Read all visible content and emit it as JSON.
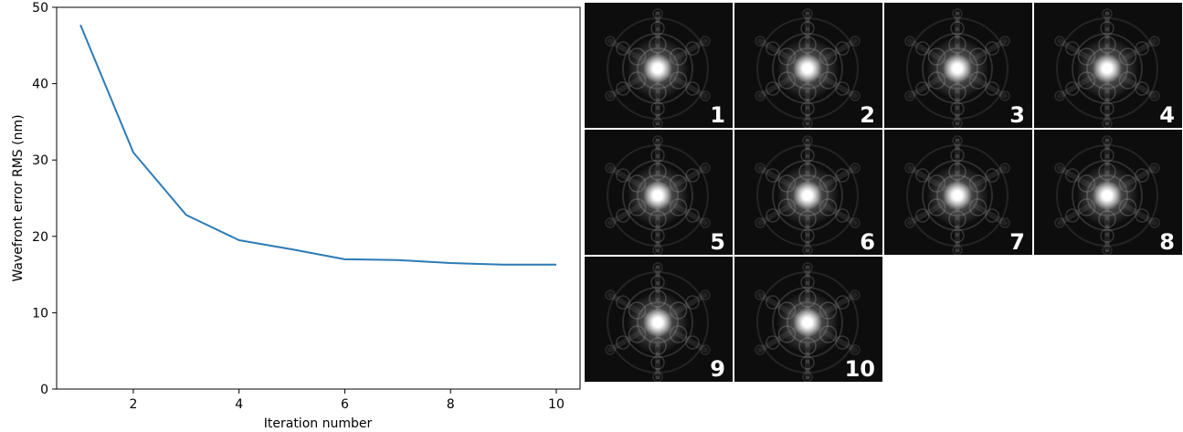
{
  "chart_data": {
    "type": "line",
    "title": "",
    "xlabel": "Iteration number",
    "ylabel": "Wavefront error RMS (nm)",
    "xlim": [
      0.55,
      10.45
    ],
    "ylim": [
      0,
      50
    ],
    "xticks": [
      2,
      4,
      6,
      8,
      10
    ],
    "yticks": [
      0,
      10,
      20,
      30,
      40,
      50
    ],
    "grid": false,
    "color": "#2c7bb6",
    "series": [
      {
        "x": [
          1,
          2,
          3,
          4,
          5,
          6,
          7,
          8,
          9,
          10
        ],
        "values": [
          47.7,
          31.0,
          22.8,
          19.5,
          18.3,
          17.0,
          16.9,
          16.5,
          16.3,
          16.3
        ]
      }
    ]
  },
  "gallery": {
    "selected_frame": "10",
    "frames": [
      {
        "label": "1"
      },
      {
        "label": "2"
      },
      {
        "label": "3"
      },
      {
        "label": "4"
      },
      {
        "label": "5"
      },
      {
        "label": "6"
      },
      {
        "label": "7"
      },
      {
        "label": "8"
      },
      {
        "label": "9"
      },
      {
        "label": "10"
      }
    ]
  }
}
